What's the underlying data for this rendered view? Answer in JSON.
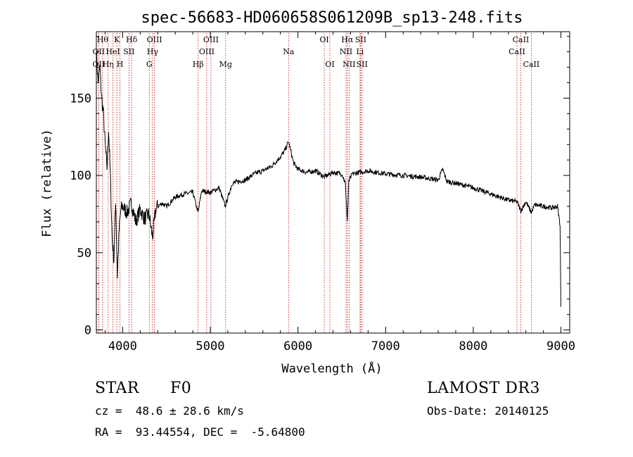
{
  "chart_data": {
    "type": "line",
    "title": "spec-56683-HD060658S061209B_sp13-248.fits",
    "xlabel": "Wavelength (Å)",
    "ylabel": "Flux (relative)",
    "xlim": [
      3700,
      9100
    ],
    "ylim": [
      -2,
      193
    ],
    "xticks": [
      4000,
      5000,
      6000,
      7000,
      8000,
      9000
    ],
    "xtick_labels": [
      "4000",
      "5000",
      "6000",
      "7000",
      "8000",
      "9000"
    ],
    "yticks": [
      0,
      50,
      100,
      150
    ],
    "ytick_labels": [
      "0",
      "50",
      "100",
      "150"
    ],
    "grid": false,
    "series": [
      {
        "x": [
          3700,
          3720,
          3740,
          3760,
          3780,
          3800,
          3820,
          3840,
          3860,
          3880,
          3900,
          3920,
          3940,
          3960,
          3980,
          4000,
          4050,
          4100,
          4150,
          4200,
          4250,
          4300,
          4340,
          4380,
          4450,
          4500,
          4600,
          4700,
          4800,
          4861,
          4900,
          5000,
          5100,
          5170,
          5250,
          5400,
          5500,
          5600,
          5700,
          5800,
          5850,
          5893,
          5950,
          6000,
          6100,
          6200,
          6300,
          6400,
          6500,
          6540,
          6563,
          6580,
          6620,
          6700,
          6800,
          7000,
          7200,
          7400,
          7500,
          7600,
          7650,
          7700,
          7800,
          8000,
          8200,
          8400,
          8500,
          8542,
          8600,
          8662,
          8700,
          8800,
          8900,
          8960,
          8990,
          9000
        ],
        "y": [
          180,
          160,
          170,
          150,
          140,
          120,
          105,
          130,
          100,
          60,
          45,
          85,
          35,
          65,
          78,
          80,
          76,
          82,
          70,
          78,
          72,
          75,
          60,
          79,
          82,
          80,
          86,
          88,
          89,
          76,
          90,
          89,
          92,
          80,
          95,
          97,
          101,
          103,
          106,
          112,
          116,
          122,
          108,
          104,
          102,
          103,
          99,
          102,
          101,
          95,
          70,
          96,
          101,
          102,
          103,
          101,
          100,
          99,
          98,
          97,
          104,
          96,
          95,
          92,
          88,
          84,
          83,
          77,
          83,
          76,
          81,
          80,
          79,
          80,
          68,
          15
        ]
      }
    ],
    "line_markers": [
      {
        "label": "OII",
        "wavelength": 3727,
        "row": 2
      },
      {
        "label": "OII",
        "wavelength": 3727,
        "row": 3
      },
      {
        "label": "Hθ",
        "wavelength": 3771,
        "row": 1
      },
      {
        "label": "Hη",
        "wavelength": 3835,
        "row": 3
      },
      {
        "label": "HeI",
        "wavelength": 3889,
        "row": 2
      },
      {
        "label": "K",
        "wavelength": 3934,
        "row": 1
      },
      {
        "label": "H",
        "wavelength": 3969,
        "row": 3
      },
      {
        "label": "SII",
        "wavelength": 4072,
        "row": 2
      },
      {
        "label": "Hδ",
        "wavelength": 4102,
        "row": 1
      },
      {
        "label": "G",
        "wavelength": 4304,
        "row": 3
      },
      {
        "label": "Hγ",
        "wavelength": 4341,
        "row": 2
      },
      {
        "label": "OIII",
        "wavelength": 4363,
        "row": 1
      },
      {
        "label": "Hβ",
        "wavelength": 4861,
        "row": 3
      },
      {
        "label": "OIII",
        "wavelength": 4959,
        "row": 2
      },
      {
        "label": "OIII",
        "wavelength": 5007,
        "row": 1
      },
      {
        "label": "Mg",
        "wavelength": 5175,
        "row": 3
      },
      {
        "label": "Na",
        "wavelength": 5893,
        "row": 2
      },
      {
        "label": "OI",
        "wavelength": 6300,
        "row": 1
      },
      {
        "label": "OI",
        "wavelength": 6364,
        "row": 3
      },
      {
        "label": "NII",
        "wavelength": 6548,
        "row": 2
      },
      {
        "label": "Hα",
        "wavelength": 6563,
        "row": 1
      },
      {
        "label": "NII",
        "wavelength": 6583,
        "row": 3
      },
      {
        "label": "Li",
        "wavelength": 6708,
        "row": 2
      },
      {
        "label": "SII",
        "wavelength": 6716,
        "row": 1
      },
      {
        "label": "SII",
        "wavelength": 6731,
        "row": 3
      },
      {
        "label": "CaII",
        "wavelength": 8498,
        "row": 2
      },
      {
        "label": "CaII",
        "wavelength": 8542,
        "row": 1
      },
      {
        "label": "CaII",
        "wavelength": 8662,
        "row": 3
      }
    ],
    "colors": {
      "spectrum": "#000000",
      "marker_lines": "#cc0000"
    }
  },
  "info": {
    "object_class": "STAR",
    "subclass": "F0",
    "survey": "LAMOST DR3",
    "redshift": "cz =  48.6 ± 28.6 km/s",
    "obs_date": "Obs-Date: 20140125",
    "coords": "RA =  93.44554, DEC =  -5.64800"
  }
}
